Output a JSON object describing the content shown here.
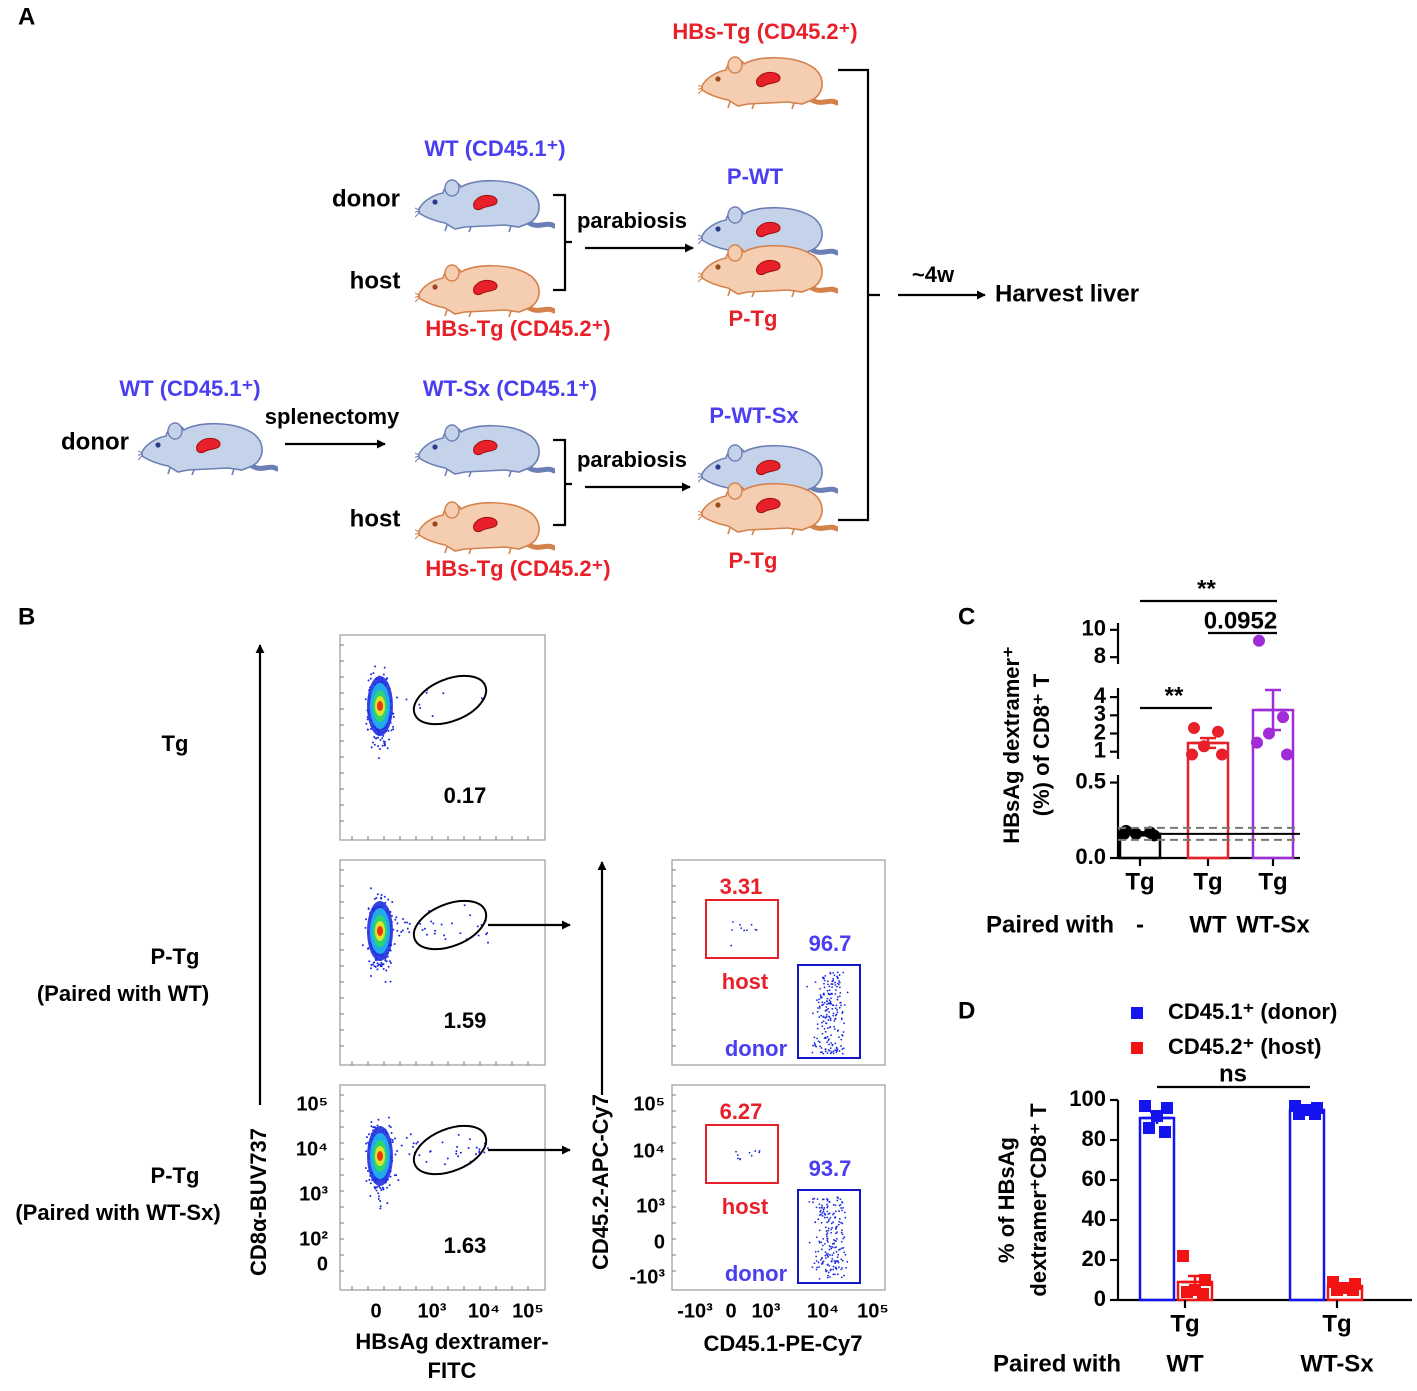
{
  "panel_a": {
    "label": "A",
    "top_mouse": "HBs-Tg (CD45.2⁺)",
    "row1": {
      "donor_strain": "WT (CD45.1⁺)",
      "donor": "donor",
      "host": "host",
      "host_strain": "HBs-Tg (CD45.2⁺)",
      "procedure": "parabiosis",
      "pair_top": "P-WT",
      "pair_bottom": "P-Tg"
    },
    "timing": "~4w",
    "outcome": "Harvest liver",
    "row2": {
      "origin_strain": "WT (CD45.1⁺)",
      "origin": "donor",
      "surgery": "splenectomy",
      "donor_strain": "WT-Sx (CD45.1⁺)",
      "host": "host",
      "host_strain": "HBs-Tg (CD45.2⁺)",
      "procedure": "parabiosis",
      "pair_top": "P-WT-Sx",
      "pair_bottom": "P-Tg"
    }
  },
  "panel_b": {
    "label": "B",
    "rows": [
      {
        "name": "Tg",
        "gate_pct": 0.17
      },
      {
        "name": "P-Tg",
        "pairing": "(Paired with WT)",
        "gate_pct": 1.59,
        "host_pct": 3.31,
        "host": "host",
        "donor_pct": 96.7,
        "donor": "donor"
      },
      {
        "name": "P-Tg",
        "pairing": "(Paired with WT-Sx)",
        "gate_pct": 1.63,
        "host_pct": 6.27,
        "host": "host",
        "donor_pct": 93.7,
        "donor": "donor"
      }
    ],
    "dextramer_plot": {
      "y_label": "CD8α-BUV737",
      "yticks": [
        "10⁵",
        "10⁴",
        "10³",
        "10²",
        "0"
      ],
      "x_label": [
        "HBsAg dextramer-",
        "FITC"
      ],
      "xticks": [
        "0",
        "10³",
        "10⁴",
        "10⁵"
      ]
    },
    "congenic_plot": {
      "y_label": "CD45.2-APC-Cy7",
      "yticks": [
        "10⁵",
        "10⁴",
        "10³",
        "0",
        "-10³"
      ],
      "x_label": "CD45.1-PE-Cy7",
      "xticks": [
        "-10³",
        "0",
        "10³",
        "10⁴",
        "10⁵"
      ]
    }
  },
  "chart_data": [
    {
      "type": "bar",
      "label": "C",
      "y_label": [
        "HBsAg dextramer⁺",
        "(%) of CD8⁺ T"
      ],
      "categories": [
        "Tg",
        "Tg",
        "Tg"
      ],
      "groups": [
        "-",
        "WT",
        "WT-Sx"
      ],
      "group_title": "Paired with",
      "colors": [
        "#000000",
        "#e8202a",
        "#a02cd8"
      ],
      "values": [
        0.16,
        1.48,
        3.29
      ],
      "errors": [
        0.01,
        0.27,
        1.1
      ],
      "points": [
        [
          0.18,
          0.17,
          0.16,
          0.16,
          0.15
        ],
        [
          2.3,
          2.1,
          1.3,
          0.85,
          0.85
        ],
        [
          9.2,
          2.9,
          2.0,
          1.5,
          0.85
        ]
      ],
      "segments": [
        {
          "ylim": [
            0,
            0.55
          ],
          "yticks": [
            {
              "value": 0,
              "label": "0.0"
            },
            {
              "value": 0.5,
              "label": "0.5"
            }
          ]
        },
        {
          "ylim": [
            0.6,
            4.5
          ],
          "yticks": [
            1,
            2,
            3,
            4
          ]
        },
        {
          "ylim": [
            7.5,
            10.5
          ],
          "yticks": [
            8,
            10
          ]
        }
      ],
      "reference_line": 0.16,
      "reference_band": [
        0.12,
        0.2
      ],
      "annotations": [
        {
          "text": "**",
          "from": 0,
          "to": 2
        },
        {
          "text": "0.0952",
          "from": 1,
          "to": 2
        },
        {
          "text": "**",
          "from": 0,
          "to": 1
        }
      ]
    },
    {
      "type": "bar",
      "label": "D",
      "y_label": [
        "% of HBsAg",
        "dextramer⁺CD8⁺ T"
      ],
      "categories": [
        "Tg",
        "Tg"
      ],
      "groups": [
        "WT",
        "WT-Sx"
      ],
      "group_title": "Paired with",
      "ylim": [
        0,
        100
      ],
      "yticks": [
        0,
        20,
        40,
        60,
        80,
        100
      ],
      "series": [
        {
          "name": "CD45.1⁺ (donor)",
          "color": "#1414f0",
          "values": [
            91,
            95
          ],
          "errors": [
            3,
            1
          ],
          "points": [
            [
              97,
              96,
              92,
              86,
              84
            ],
            [
              97,
              96,
              95,
              93,
              93
            ]
          ]
        },
        {
          "name": "CD45.2⁺ (host)",
          "color": "#f01414",
          "values": [
            9,
            7
          ],
          "errors": [
            3,
            1
          ],
          "points": [
            [
              22,
              10,
              5,
              4,
              3
            ],
            [
              9,
              8,
              6,
              5,
              5
            ]
          ]
        }
      ],
      "annotation": "ns"
    }
  ]
}
